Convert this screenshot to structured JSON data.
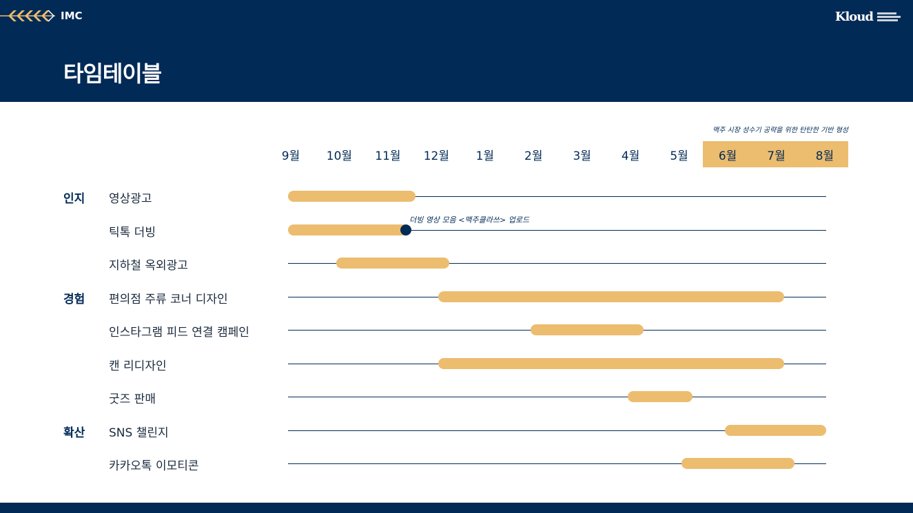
{
  "header": {
    "section_label": "IMC",
    "page_title": "타임테이블",
    "logo_text": "Kloud"
  },
  "colors": {
    "navy": "#022a56",
    "gold": "#ecbc6f",
    "white": "#ffffff"
  },
  "timeline": {
    "months": [
      "9월",
      "10월",
      "11월",
      "12월",
      "1월",
      "2월",
      "3월",
      "4월",
      "5월",
      "6월",
      "7월",
      "8월"
    ],
    "highlight_months": [
      "6월",
      "7월",
      "8월"
    ],
    "highlight_note": "맥주 시장 성수기 공략을 위한 탄탄한 기반 형성",
    "categories": [
      {
        "name": "인지",
        "row": 0
      },
      {
        "name": "경험",
        "row": 3
      },
      {
        "name": "확산",
        "row": 7
      }
    ],
    "tasks": [
      {
        "label": "영상광고",
        "start": 0,
        "end": 2.4
      },
      {
        "label": "틱톡 더빙",
        "start": 0,
        "end": 2.3,
        "milestone": 2.3,
        "milestone_note": "더빙 영상 모음 <맥주클라쓰> 업로드"
      },
      {
        "label": "지하철 옥외광고",
        "start": 1,
        "end": 3.1
      },
      {
        "label": "편의점 주류 코너 디자인",
        "start": 3.1,
        "end": 10.0
      },
      {
        "label": "인스타그램 피드 연결 캠페인",
        "start": 5,
        "end": 7.1
      },
      {
        "label": "캔 리디자인",
        "start": 3.1,
        "end": 10.0
      },
      {
        "label": "굿즈 판매",
        "start": 7,
        "end": 8.1
      },
      {
        "label": "SNS 챌린지",
        "start": 9,
        "end": 11
      },
      {
        "label": "카카오톡 이모티콘",
        "start": 8.1,
        "end": 10.2
      }
    ]
  }
}
